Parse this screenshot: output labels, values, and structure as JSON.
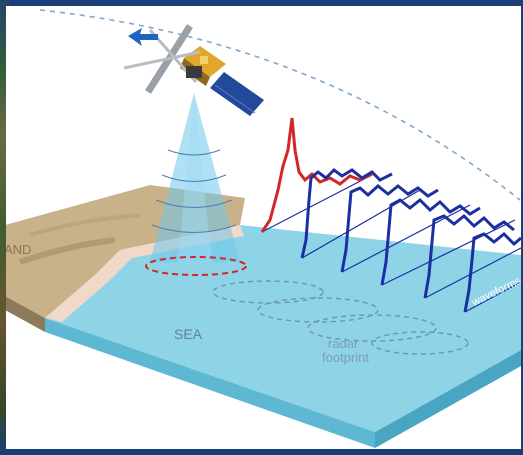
{
  "labels": {
    "land": "AND",
    "sea": "SEA",
    "footprint_line1": "radar",
    "footprint_line2": "footprint",
    "waveforms": "waveforms"
  },
  "colors": {
    "frame": "#1a3f78",
    "sea": "#8fd3e6",
    "sea_side": "#5fb8d3",
    "land": "#c9b28a",
    "beach": "#f1d9c9",
    "beam": "#6fc6ea",
    "echo_land": "#d32727",
    "echo_sea": "#1c2fa0",
    "orbit": "#7fa8cc"
  },
  "icons": [
    "satellite-icon",
    "direction-arrow-icon"
  ]
}
